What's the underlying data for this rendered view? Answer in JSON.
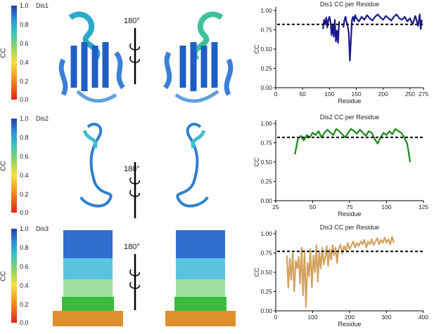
{
  "rotation_label": "180°",
  "colorbar": {
    "label": "CC",
    "ticks": [
      "1.0",
      "0.8",
      "0.6",
      "0.4",
      "0.2",
      "0.0"
    ]
  },
  "panels": [
    {
      "name": "Dis1",
      "color": "#1a1a8c"
    },
    {
      "name": "Dis2",
      "color": "#168a16"
    },
    {
      "name": "Dis3",
      "color": "#d4a25f"
    }
  ],
  "chart_data": [
    {
      "type": "line",
      "title": "Dis1 CC per Residue",
      "xlabel": "Residue",
      "ylabel": "CC",
      "xlim": [
        0,
        275
      ],
      "ylim": [
        0,
        1.0
      ],
      "xticks": [
        0,
        50,
        100,
        150,
        200,
        250,
        275
      ],
      "yticks": [
        0.0,
        0.25,
        0.5,
        0.75,
        1.0
      ],
      "reference_line": 0.82,
      "series": [
        {
          "color": "#1a1a8c",
          "x": [
            88,
            90,
            92,
            94,
            96,
            98,
            100,
            102,
            104,
            106,
            108,
            110,
            112,
            114,
            116,
            118,
            120,
            122,
            124,
            126,
            128,
            130,
            132,
            134,
            136,
            138,
            140,
            142,
            144,
            146,
            148,
            150,
            155,
            160,
            165,
            170,
            175,
            180,
            185,
            190,
            195,
            200,
            205,
            210,
            215,
            220,
            225,
            230,
            235,
            240,
            245,
            250,
            255,
            260,
            265,
            268,
            270,
            272
          ],
          "y": [
            0.76,
            0.88,
            0.82,
            0.91,
            0.78,
            0.88,
            0.92,
            0.85,
            0.68,
            0.82,
            0.66,
            0.88,
            0.6,
            0.74,
            0.58,
            0.86,
            null,
            null,
            null,
            0.78,
            0.88,
            0.92,
            0.84,
            0.8,
            0.7,
            0.35,
            0.62,
            0.88,
            0.92,
            0.86,
            0.94,
            0.9,
            0.86,
            0.92,
            0.88,
            0.94,
            0.9,
            0.87,
            0.92,
            0.95,
            0.91,
            0.88,
            0.93,
            0.9,
            0.87,
            0.92,
            0.95,
            0.9,
            0.88,
            0.92,
            0.86,
            0.9,
            0.82,
            0.93,
            0.8,
            0.95,
            0.76,
            0.88
          ]
        }
      ]
    },
    {
      "type": "line",
      "title": "Dis2 CC per Residue",
      "xlabel": "Residue",
      "ylabel": "CC",
      "xlim": [
        25,
        125
      ],
      "ylim": [
        0,
        1.0
      ],
      "xticks": [
        25,
        50,
        75,
        100,
        125
      ],
      "yticks": [
        0.0,
        0.25,
        0.5,
        0.75,
        1.0
      ],
      "reference_line": 0.82,
      "series": [
        {
          "color": "#168a16",
          "x": [
            38,
            40,
            42,
            44,
            46,
            48,
            50,
            52,
            54,
            56,
            58,
            60,
            62,
            64,
            66,
            68,
            70,
            72,
            74,
            76,
            78,
            80,
            82,
            84,
            86,
            88,
            90,
            92,
            94,
            96,
            98,
            100,
            102,
            104,
            106,
            108,
            110,
            112,
            114,
            116
          ],
          "y": [
            0.6,
            0.8,
            0.84,
            0.78,
            0.85,
            0.82,
            0.88,
            0.85,
            0.9,
            0.82,
            0.88,
            0.92,
            0.88,
            0.85,
            0.93,
            0.9,
            0.86,
            0.82,
            0.88,
            0.93,
            0.9,
            0.87,
            0.92,
            0.88,
            0.84,
            0.9,
            0.88,
            0.8,
            0.74,
            0.82,
            0.88,
            0.85,
            0.9,
            0.86,
            0.93,
            0.9,
            0.88,
            0.82,
            0.74,
            0.5
          ]
        }
      ]
    },
    {
      "type": "line",
      "title": "Dis3 CC per Residue",
      "xlabel": "Residue",
      "ylabel": "CC",
      "xlim": [
        0,
        400
      ],
      "ylim": [
        0,
        1.0
      ],
      "xticks": [
        0,
        100,
        200,
        300,
        400
      ],
      "yticks": [
        0.0,
        0.25,
        0.5,
        0.75,
        1.0
      ],
      "reference_line": 0.77,
      "series": [
        {
          "color": "#d4a25f",
          "x": [
            30,
            34,
            38,
            42,
            46,
            50,
            54,
            58,
            62,
            66,
            70,
            74,
            78,
            82,
            86,
            90,
            94,
            98,
            102,
            106,
            110,
            114,
            118,
            122,
            126,
            130,
            134,
            138,
            142,
            146,
            150,
            154,
            158,
            162,
            166,
            170,
            175,
            180,
            185,
            190,
            195,
            200,
            205,
            210,
            215,
            220,
            225,
            230,
            235,
            240,
            245,
            250,
            255,
            260,
            265,
            270,
            275,
            280,
            285,
            290,
            295,
            300,
            305,
            310,
            315,
            320
          ],
          "y": [
            0.72,
            0.3,
            0.68,
            0.4,
            0.75,
            0.25,
            0.65,
            0.55,
            0.7,
            0.35,
            0.82,
            0.2,
            0.78,
            0.05,
            0.62,
            0.45,
            0.8,
            0.3,
            0.72,
            0.5,
            0.85,
            0.38,
            0.76,
            0.55,
            0.82,
            0.6,
            0.7,
            0.84,
            0.58,
            0.8,
            0.66,
            0.85,
            0.72,
            0.82,
            0.62,
            0.8,
            0.86,
            0.74,
            0.84,
            0.78,
            0.88,
            0.8,
            0.85,
            0.9,
            0.82,
            0.88,
            0.84,
            0.9,
            0.86,
            0.92,
            0.82,
            0.9,
            0.86,
            0.93,
            0.85,
            0.9,
            0.94,
            0.86,
            0.92,
            0.88,
            0.95,
            0.88,
            0.93,
            0.86,
            0.96,
            0.88
          ]
        }
      ]
    }
  ]
}
